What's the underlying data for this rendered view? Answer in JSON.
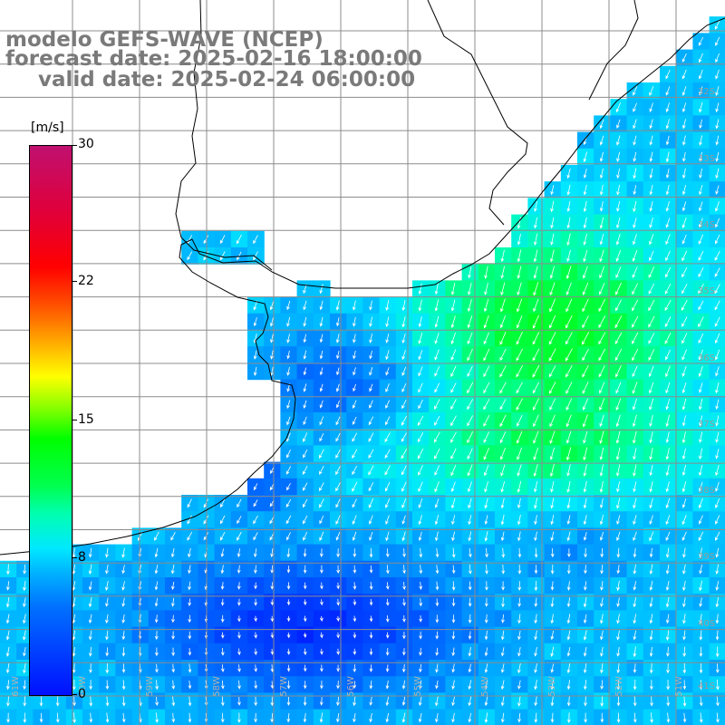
{
  "title": {
    "line1": "modelo GEFS-WAVE (NCEP)",
    "line2": "forecast date: 2025-02-16 18:00:00",
    "line3": "valid date: 2025-02-24 06:00:00"
  },
  "colorbar": {
    "unit": "[m/s]",
    "min": 0,
    "max": 30,
    "ticks": [
      "30",
      "22",
      "15",
      "8",
      "0"
    ]
  },
  "lat_labels": [
    "32S",
    "33S",
    "34S",
    "35S",
    "36S",
    "37S",
    "38S",
    "39S",
    "40S",
    "41S"
  ],
  "lon_labels": [
    "61W",
    "60W",
    "59W",
    "58W",
    "57W",
    "56W",
    "55W",
    "54W",
    "53W",
    "52W",
    "51W"
  ],
  "field": {
    "variable": "wind speed with direction arrows",
    "dominant_direction": "from north-northeast",
    "land_color": "#ffffff",
    "coast_color": "#000000",
    "grid_color": "#8c8c8c",
    "arrow_color": "#ffffff"
  }
}
